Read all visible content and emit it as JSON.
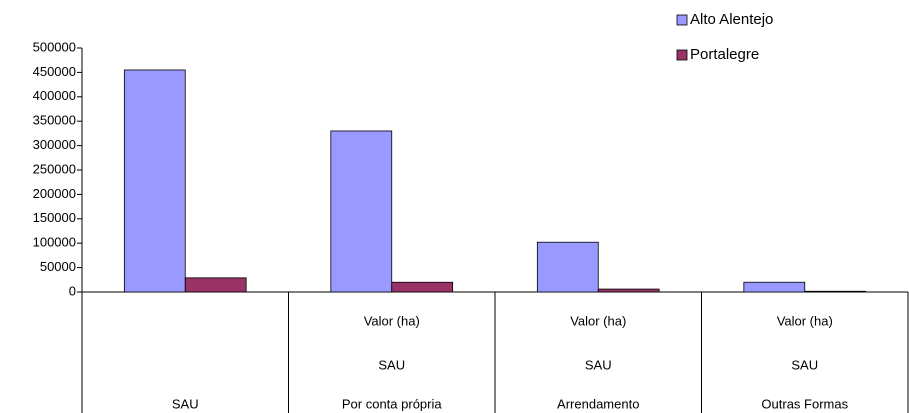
{
  "chart_data": {
    "type": "bar",
    "category_levels": [
      [
        null,
        "Valor (ha)",
        "Valor (ha)",
        "Valor (ha)"
      ],
      [
        null,
        "SAU",
        "SAU",
        "SAU"
      ],
      [
        "SAU",
        "Por conta própria",
        "Arrendamento",
        "Outras Formas"
      ]
    ],
    "series": [
      {
        "name": "Alto Alentejo",
        "color": "#9999ff",
        "values": [
          455000,
          330000,
          102000,
          20000
        ]
      },
      {
        "name": "Portalegre",
        "color": "#993366",
        "values": [
          29000,
          20000,
          6000,
          1500
        ]
      }
    ],
    "ylim": [
      0,
      500000
    ],
    "yticks": [
      0,
      50000,
      100000,
      150000,
      200000,
      250000,
      300000,
      350000,
      400000,
      450000,
      500000
    ],
    "grid": false,
    "legend": "top-right"
  }
}
